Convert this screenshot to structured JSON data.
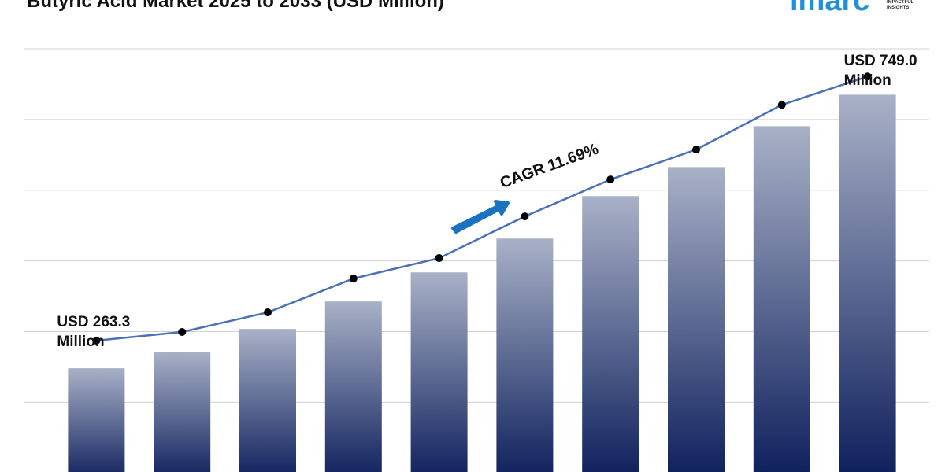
{
  "chart_data": {
    "type": "bar",
    "title": "Butyric Acid Market 2025 to 2033 (USD Million)",
    "logo": "imarc",
    "logo_tagline": "IMPACTFUL INSIGHTS",
    "annotation": "CAGR 11.69%",
    "categories": [
      null,
      null,
      null,
      null,
      null,
      null,
      null,
      null,
      null,
      null
    ],
    "ylim": [
      0,
      800
    ],
    "gridlines": [
      150,
      280,
      410,
      540,
      670,
      800
    ],
    "series": [
      {
        "type": "bar",
        "values": [
          212.5,
          242.8,
          284.8,
          335.4,
          388.8,
          451.0,
          529.1,
          582.5,
          657.7,
          715.5
        ]
      },
      {
        "type": "line",
        "color": "#4a70b8",
        "values": [
          263.3,
          279.2,
          315.3,
          377.5,
          415.1,
          491.7,
          559.6,
          614.6,
          696.9,
          749.0
        ],
        "value_labels": [
          "USD 263.3 Million",
          null,
          null,
          null,
          null,
          null,
          null,
          null,
          null,
          "USD 749.0 Million"
        ]
      }
    ]
  }
}
